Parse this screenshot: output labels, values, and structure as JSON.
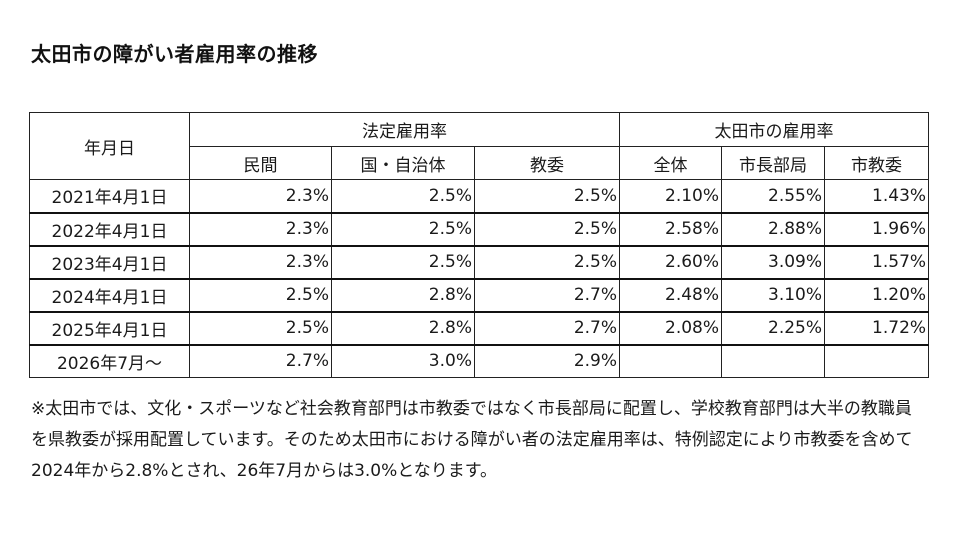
{
  "title": "太田市の障がい者雇用率の推移",
  "table": {
    "date_header": "年月日",
    "group_legal": "法定雇用率",
    "group_city": "太田市の雇用率",
    "sub_headers": [
      "民間",
      "国・自治体",
      "教委",
      "全体",
      "市長部局",
      "市教委"
    ],
    "rows": [
      {
        "date": "2021年4月1日",
        "values": [
          "2.3%",
          "2.5%",
          "2.5%",
          "2.10%",
          "2.55%",
          "1.43%"
        ]
      },
      {
        "date": "2022年4月1日",
        "values": [
          "2.3%",
          "2.5%",
          "2.5%",
          "2.58%",
          "2.88%",
          "1.96%"
        ]
      },
      {
        "date": "2023年4月1日",
        "values": [
          "2.3%",
          "2.5%",
          "2.5%",
          "2.60%",
          "3.09%",
          "1.57%"
        ]
      },
      {
        "date": "2024年4月1日",
        "values": [
          "2.5%",
          "2.8%",
          "2.7%",
          "2.48%",
          "3.10%",
          "1.20%"
        ]
      },
      {
        "date": "2025年4月1日",
        "values": [
          "2.5%",
          "2.8%",
          "2.7%",
          "2.08%",
          "2.25%",
          "1.72%"
        ]
      },
      {
        "date": "2026年7月～",
        "values": [
          "2.7%",
          "3.0%",
          "2.9%",
          "",
          "",
          ""
        ]
      }
    ]
  },
  "note": "※太田市では、文化・スポーツなど社会教育部門は市教委ではなく市長部局に配置し、学校教育部門は大半の教職員を県教委が採用配置しています。そのため太田市における障がい者の法定雇用率は、特例認定により市教委を含めて2024年から2.8%とされ、26年7月からは3.0%となります。"
}
